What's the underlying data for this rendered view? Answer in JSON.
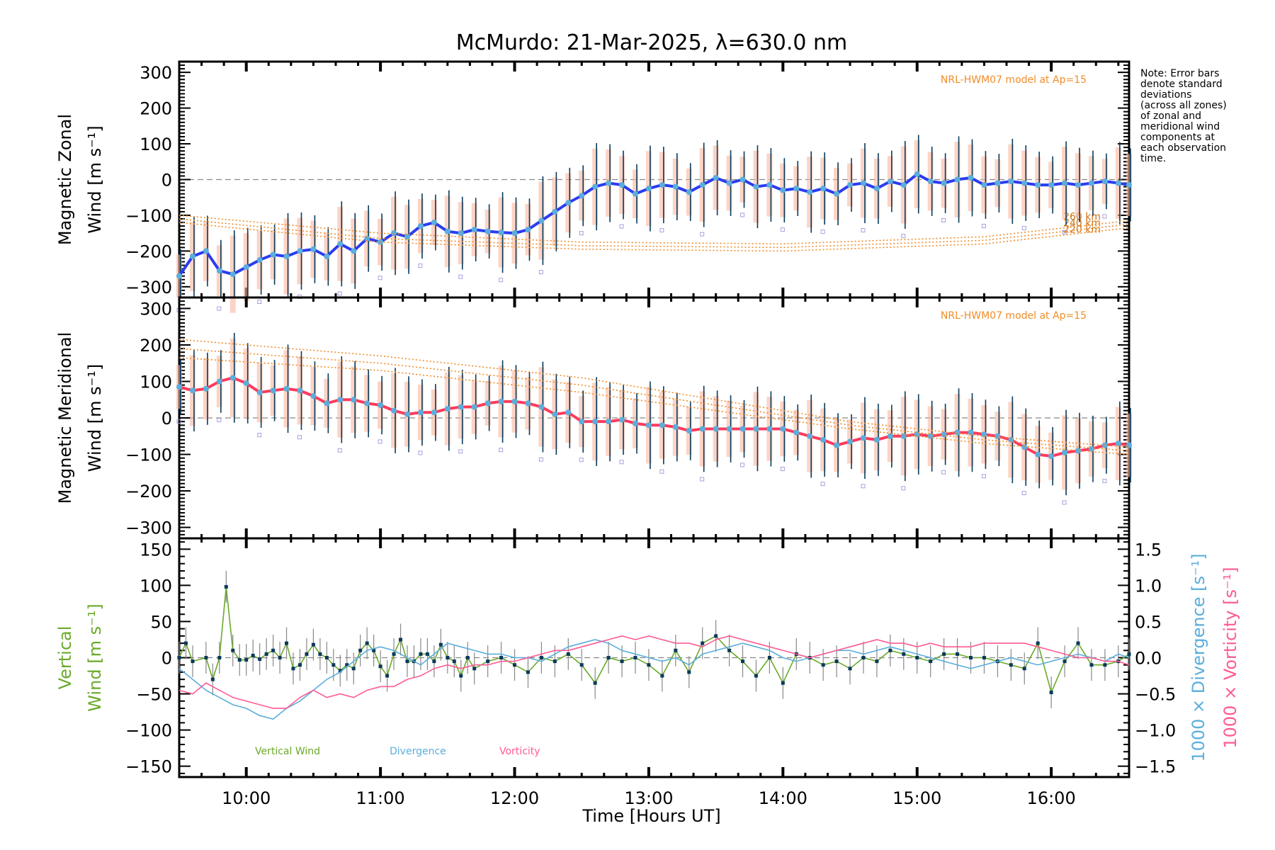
{
  "chart_data": [
    {
      "type": "line",
      "title": "McMurdo: 21-Mar-2025, λ=630.0 nm",
      "panel": "zonal",
      "ylabel_line1": "Magnetic Zonal",
      "ylabel_line2": "Wind [m s⁻¹]",
      "ylim": [
        -330,
        330
      ],
      "yticks": [
        300,
        200,
        100,
        0,
        -100,
        -200,
        -300
      ],
      "model_label": "NRL-HWM07 model at Ap=15",
      "model_alt_labels": [
        "260 km",
        "240 km",
        "220 km"
      ],
      "series": [
        {
          "name": "Mean zonal wind",
          "color": "#2b3cf0",
          "x": [
            9.5,
            9.6,
            9.7,
            9.8,
            9.9,
            10.0,
            10.1,
            10.2,
            10.3,
            10.4,
            10.5,
            10.6,
            10.7,
            10.8,
            10.9,
            11.0,
            11.1,
            11.2,
            11.3,
            11.4,
            11.5,
            11.6,
            11.7,
            11.8,
            11.9,
            12.0,
            12.1,
            12.2,
            12.3,
            12.4,
            12.5,
            12.6,
            12.7,
            12.8,
            12.9,
            13.0,
            13.1,
            13.2,
            13.3,
            13.4,
            13.5,
            13.6,
            13.7,
            13.8,
            13.9,
            14.0,
            14.1,
            14.2,
            14.3,
            14.4,
            14.5,
            14.6,
            14.7,
            14.8,
            14.9,
            15.0,
            15.1,
            15.2,
            15.3,
            15.4,
            15.5,
            15.6,
            15.7,
            15.8,
            15.9,
            16.0,
            16.1,
            16.2,
            16.3,
            16.4,
            16.5,
            16.58
          ],
          "y": [
            -270,
            -215,
            -200,
            -255,
            -265,
            -245,
            -225,
            -210,
            -215,
            -200,
            -195,
            -215,
            -180,
            -200,
            -165,
            -175,
            -150,
            -160,
            -130,
            -120,
            -145,
            -150,
            -140,
            -145,
            -148,
            -150,
            -140,
            -115,
            -90,
            -65,
            -45,
            -20,
            -10,
            -15,
            -40,
            -25,
            -15,
            -20,
            -35,
            -15,
            5,
            -10,
            0,
            -20,
            -15,
            -30,
            -25,
            -35,
            -25,
            -40,
            -15,
            -10,
            -25,
            -5,
            -15,
            15,
            -5,
            -10,
            0,
            5,
            -15,
            -10,
            -5,
            -10,
            -15,
            -15,
            -10,
            -15,
            -10,
            -5,
            -10,
            -15
          ]
        },
        {
          "name": "HWM07 260 km",
          "color": "#f08c28",
          "x": [
            9.5,
            11,
            12.5,
            14,
            15.5,
            16.58
          ],
          "y": [
            -100,
            -150,
            -175,
            -180,
            -160,
            -115
          ]
        },
        {
          "name": "HWM07 240 km",
          "color": "#f08c28",
          "x": [
            9.5,
            11,
            12.5,
            14,
            15.5,
            16.58
          ],
          "y": [
            -110,
            -165,
            -185,
            -190,
            -170,
            -125
          ]
        },
        {
          "name": "HWM07 220 km",
          "color": "#f08c28",
          "x": [
            9.5,
            11,
            12.5,
            14,
            15.5,
            16.58
          ],
          "y": [
            -120,
            -175,
            -195,
            -200,
            -180,
            -135
          ]
        }
      ]
    },
    {
      "type": "line",
      "panel": "meridional",
      "ylabel_line1": "Magnetic Meridional",
      "ylabel_line2": "Wind [m s⁻¹]",
      "ylim": [
        -330,
        330
      ],
      "yticks": [
        300,
        200,
        100,
        0,
        -100,
        -200,
        -300
      ],
      "model_label": "NRL-HWM07 model at Ap=15",
      "series": [
        {
          "name": "Mean meridional wind",
          "color": "#ff3a5c",
          "x": [
            9.5,
            9.6,
            9.7,
            9.8,
            9.9,
            10.0,
            10.1,
            10.2,
            10.3,
            10.4,
            10.5,
            10.6,
            10.7,
            10.8,
            10.9,
            11.0,
            11.1,
            11.2,
            11.3,
            11.4,
            11.5,
            11.6,
            11.7,
            11.8,
            11.9,
            12.0,
            12.1,
            12.2,
            12.3,
            12.4,
            12.5,
            12.6,
            12.7,
            12.8,
            12.9,
            13.0,
            13.1,
            13.2,
            13.3,
            13.4,
            13.5,
            13.6,
            13.7,
            13.8,
            13.9,
            14.0,
            14.1,
            14.2,
            14.3,
            14.4,
            14.5,
            14.6,
            14.7,
            14.8,
            14.9,
            15.0,
            15.1,
            15.2,
            15.3,
            15.4,
            15.5,
            15.6,
            15.7,
            15.8,
            15.9,
            16.0,
            16.1,
            16.2,
            16.3,
            16.4,
            16.5,
            16.58
          ],
          "y": [
            85,
            75,
            80,
            100,
            110,
            95,
            70,
            75,
            80,
            75,
            60,
            40,
            50,
            50,
            40,
            35,
            20,
            10,
            15,
            15,
            25,
            30,
            30,
            40,
            45,
            45,
            40,
            30,
            10,
            15,
            -10,
            -10,
            -10,
            -5,
            -15,
            -20,
            -20,
            -25,
            -35,
            -30,
            -30,
            -30,
            -30,
            -30,
            -30,
            -30,
            -40,
            -50,
            -60,
            -75,
            -65,
            -55,
            -60,
            -50,
            -50,
            -45,
            -50,
            -45,
            -40,
            -40,
            -45,
            -50,
            -60,
            -80,
            -100,
            -105,
            -95,
            -90,
            -85,
            -75,
            -70,
            -75
          ]
        },
        {
          "name": "HWM07 260 km",
          "color": "#f08c28",
          "x": [
            9.5,
            11,
            12.5,
            13.5,
            14.5,
            15.5,
            16.58
          ],
          "y": [
            215,
            170,
            110,
            50,
            -10,
            -50,
            -80
          ]
        },
        {
          "name": "HWM07 240 km",
          "color": "#f08c28",
          "x": [
            9.5,
            11,
            12.5,
            13.5,
            14.5,
            15.5,
            16.58
          ],
          "y": [
            190,
            150,
            90,
            35,
            -20,
            -60,
            -90
          ]
        },
        {
          "name": "HWM07 220 km",
          "color": "#f08c28",
          "x": [
            9.5,
            11,
            12.5,
            13.5,
            14.5,
            15.5,
            16.58
          ],
          "y": [
            165,
            130,
            70,
            20,
            -30,
            -70,
            -100
          ]
        }
      ]
    },
    {
      "type": "line",
      "panel": "vertical",
      "ylabel_line1": "Vertical",
      "ylabel_line2": "Wind [m s⁻¹]",
      "y2label_div": "1000 × Divergence [s⁻¹]",
      "y2label_vort": "1000 × Vorticity [s⁻¹]",
      "ylim": [
        -165,
        165
      ],
      "yticks": [
        150,
        100,
        50,
        0,
        -50,
        -100,
        -150
      ],
      "y2lim": [
        -1.65,
        1.65
      ],
      "y2ticks": [
        1.5,
        1.0,
        0.5,
        0.0,
        -0.5,
        -1.0,
        -1.5
      ],
      "legend": [
        {
          "label": "Vertical Wind",
          "color": "#6aaa2a"
        },
        {
          "label": "Divergence",
          "color": "#5aaedc"
        },
        {
          "label": "Vorticity",
          "color": "#ff5a94"
        }
      ],
      "series": [
        {
          "name": "Vertical Wind",
          "color": "#6aaa2a",
          "x": [
            9.5,
            9.55,
            9.6,
            9.7,
            9.75,
            9.8,
            9.85,
            9.9,
            9.95,
            10.0,
            10.05,
            10.1,
            10.15,
            10.2,
            10.25,
            10.3,
            10.35,
            10.4,
            10.45,
            10.5,
            10.55,
            10.6,
            10.65,
            10.7,
            10.75,
            10.8,
            10.85,
            10.9,
            10.95,
            11.0,
            11.05,
            11.1,
            11.15,
            11.2,
            11.25,
            11.3,
            11.35,
            11.4,
            11.45,
            11.5,
            11.55,
            11.6,
            11.65,
            11.7,
            11.8,
            11.9,
            12.0,
            12.1,
            12.2,
            12.3,
            12.4,
            12.5,
            12.6,
            12.7,
            12.8,
            12.9,
            13.0,
            13.1,
            13.2,
            13.3,
            13.4,
            13.5,
            13.6,
            13.7,
            13.8,
            13.9,
            14.0,
            14.1,
            14.2,
            14.3,
            14.4,
            14.5,
            14.6,
            14.7,
            14.8,
            14.9,
            15.0,
            15.1,
            15.2,
            15.3,
            15.4,
            15.5,
            15.6,
            15.7,
            15.8,
            15.9,
            16.0,
            16.1,
            16.2,
            16.3,
            16.4,
            16.5,
            16.58
          ],
          "y": [
            0,
            20,
            -5,
            0,
            -30,
            0,
            98,
            10,
            -3,
            -3,
            3,
            -2,
            5,
            10,
            0,
            20,
            -15,
            -10,
            5,
            18,
            5,
            0,
            -10,
            -18,
            -10,
            -15,
            10,
            20,
            10,
            -12,
            -25,
            5,
            25,
            -5,
            -5,
            5,
            5,
            -5,
            18,
            0,
            -5,
            -25,
            0,
            -15,
            -5,
            0,
            -10,
            -20,
            0,
            -5,
            5,
            -10,
            -35,
            0,
            -5,
            0,
            -10,
            -25,
            10,
            -20,
            20,
            30,
            10,
            -5,
            -25,
            0,
            -35,
            5,
            0,
            -10,
            -5,
            -15,
            0,
            -5,
            10,
            5,
            0,
            -5,
            5,
            5,
            0,
            0,
            -5,
            -10,
            -15,
            20,
            -48,
            -5,
            20,
            -10,
            -10,
            -5,
            5
          ]
        },
        {
          "name": "Divergence",
          "color": "#5aaedc",
          "x": [
            9.5,
            9.6,
            9.7,
            9.8,
            9.9,
            10.0,
            10.1,
            10.2,
            10.3,
            10.4,
            10.5,
            10.6,
            10.7,
            10.8,
            10.9,
            11.0,
            11.1,
            11.2,
            11.3,
            11.4,
            11.5,
            11.6,
            11.7,
            11.8,
            11.9,
            12.0,
            12.1,
            12.2,
            12.3,
            12.4,
            12.5,
            12.6,
            12.7,
            12.8,
            12.9,
            13.0,
            13.1,
            13.2,
            13.3,
            13.4,
            13.5,
            13.6,
            13.7,
            13.8,
            13.9,
            14.0,
            14.1,
            14.2,
            14.3,
            14.4,
            14.5,
            14.6,
            14.7,
            14.8,
            14.9,
            15.0,
            15.1,
            15.2,
            15.3,
            15.4,
            15.5,
            15.6,
            15.7,
            15.8,
            15.9,
            16.0,
            16.1,
            16.2,
            16.3,
            16.4,
            16.5,
            16.58
          ],
          "y": [
            -0.15,
            -0.3,
            -0.45,
            -0.55,
            -0.65,
            -0.7,
            -0.8,
            -0.85,
            -0.7,
            -0.6,
            -0.45,
            -0.3,
            -0.2,
            -0.05,
            0.1,
            0.15,
            0.1,
            0.0,
            -0.1,
            0.05,
            0.2,
            0.15,
            0.1,
            0.05,
            0.05,
            0.0,
            0.0,
            -0.05,
            0.05,
            0.15,
            0.2,
            0.25,
            0.2,
            0.1,
            0.05,
            0.0,
            -0.05,
            0.0,
            -0.1,
            0.05,
            0.1,
            0.15,
            0.2,
            0.15,
            0.1,
            0.0,
            -0.05,
            0.0,
            0.05,
            0.1,
            0.1,
            0.05,
            0.1,
            0.15,
            0.1,
            0.05,
            0.0,
            -0.05,
            -0.1,
            -0.15,
            -0.1,
            -0.05,
            0.0,
            -0.05,
            -0.1,
            -0.05,
            0.0,
            0.05,
            0.0,
            -0.05,
            0.05,
            0.0
          ]
        },
        {
          "name": "Vorticity",
          "color": "#ff5a94",
          "x": [
            9.5,
            9.6,
            9.7,
            9.8,
            9.9,
            10.0,
            10.1,
            10.2,
            10.3,
            10.4,
            10.5,
            10.6,
            10.7,
            10.8,
            10.9,
            11.0,
            11.1,
            11.2,
            11.3,
            11.4,
            11.5,
            11.6,
            11.7,
            11.8,
            11.9,
            12.0,
            12.1,
            12.2,
            12.3,
            12.4,
            12.5,
            12.6,
            12.7,
            12.8,
            12.9,
            13.0,
            13.1,
            13.2,
            13.3,
            13.4,
            13.5,
            13.6,
            13.7,
            13.8,
            13.9,
            14.0,
            14.1,
            14.2,
            14.3,
            14.4,
            14.5,
            14.6,
            14.7,
            14.8,
            14.9,
            15.0,
            15.1,
            15.2,
            15.3,
            15.4,
            15.5,
            15.6,
            15.7,
            15.8,
            15.9,
            16.0,
            16.1,
            16.2,
            16.3,
            16.4,
            16.5,
            16.58
          ],
          "y": [
            -0.45,
            -0.5,
            -0.35,
            -0.45,
            -0.55,
            -0.6,
            -0.65,
            -0.7,
            -0.7,
            -0.55,
            -0.45,
            -0.55,
            -0.5,
            -0.55,
            -0.45,
            -0.4,
            -0.4,
            -0.3,
            -0.25,
            -0.15,
            -0.1,
            -0.15,
            -0.1,
            -0.1,
            -0.05,
            -0.05,
            0.0,
            0.05,
            0.1,
            0.1,
            0.15,
            0.2,
            0.25,
            0.3,
            0.25,
            0.3,
            0.25,
            0.2,
            0.2,
            0.15,
            0.25,
            0.3,
            0.25,
            0.2,
            0.15,
            0.1,
            0.05,
            0.0,
            0.05,
            0.1,
            0.15,
            0.2,
            0.25,
            0.2,
            0.2,
            0.15,
            0.2,
            0.15,
            0.15,
            0.15,
            0.2,
            0.2,
            0.2,
            0.2,
            0.15,
            0.1,
            0.05,
            0.0,
            0.0,
            -0.05,
            -0.05,
            -0.1
          ]
        }
      ]
    }
  ],
  "xaxis": {
    "label": "Time [Hours UT]",
    "xlim": [
      9.5,
      16.58
    ],
    "ticks": [
      {
        "v": 10,
        "label": "10:00"
      },
      {
        "v": 11,
        "label": "11:00"
      },
      {
        "v": 12,
        "label": "12:00"
      },
      {
        "v": 13,
        "label": "13:00"
      },
      {
        "v": 14,
        "label": "14:00"
      },
      {
        "v": 15,
        "label": "15:00"
      },
      {
        "v": 16,
        "label": "16:00"
      }
    ]
  },
  "note": [
    "Note: Error bars",
    "denote standard",
    "deviations",
    "(across all zones)",
    "of zonal and",
    "meridional wind",
    "components at",
    "each observation",
    "time."
  ]
}
